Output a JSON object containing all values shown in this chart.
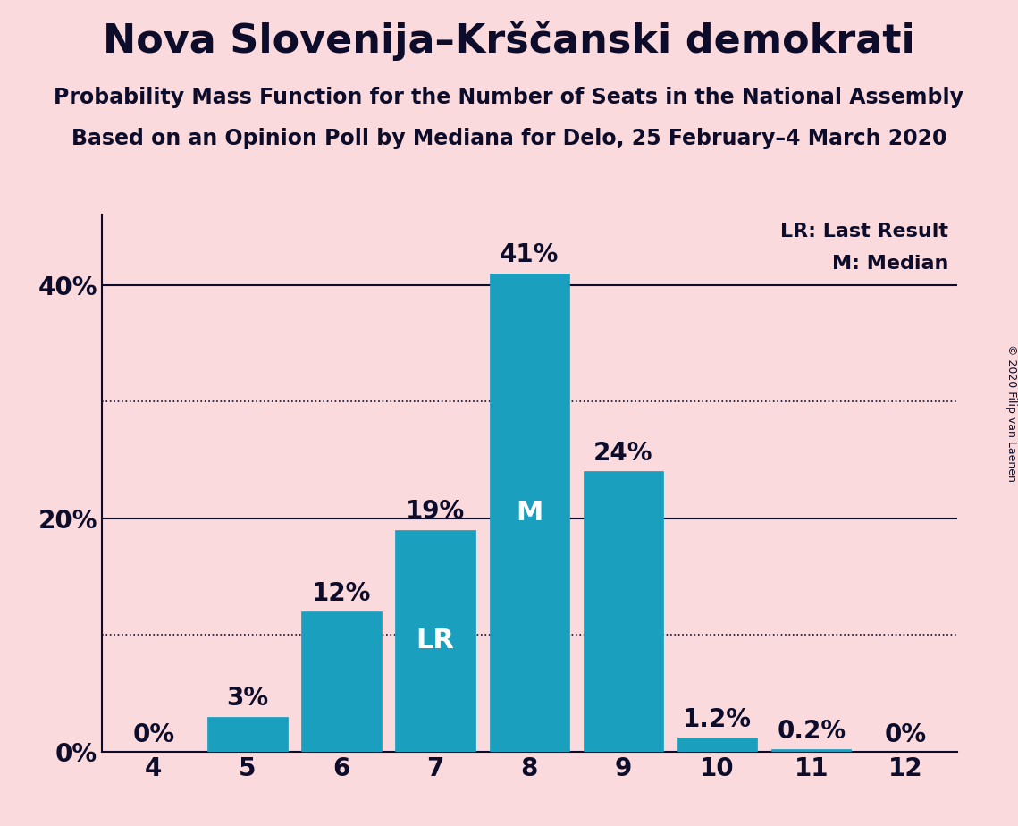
{
  "title": "Nova Slovenija–Krščanski demokrati",
  "subtitle1": "Probability Mass Function for the Number of Seats in the National Assembly",
  "subtitle2": "Based on an Opinion Poll by Mediana for Delo, 25 February–4 March 2020",
  "copyright": "© 2020 Filip van Laenen",
  "categories": [
    4,
    5,
    6,
    7,
    8,
    9,
    10,
    11,
    12
  ],
  "values": [
    0.0,
    3.0,
    12.0,
    19.0,
    41.0,
    24.0,
    1.2,
    0.2,
    0.0
  ],
  "labels": [
    "0%",
    "3%",
    "12%",
    "19%",
    "41%",
    "24%",
    "1.2%",
    "0.2%",
    "0%"
  ],
  "bar_color": "#1a9fbe",
  "background_color": "#fadadd",
  "text_color": "#0d0d2b",
  "bar_label_color_outside": "#0d0d2b",
  "bar_label_color_inside": "#ffffff",
  "lr_bar": 7,
  "median_bar": 8,
  "lr_label": "LR",
  "median_label": "M",
  "legend_lr": "LR: Last Result",
  "legend_m": "M: Median",
  "ytick_labels": [
    "0%",
    "20%",
    "40%"
  ],
  "ytick_values": [
    0,
    20,
    40
  ],
  "ylim": [
    0,
    46
  ],
  "solid_line_y": [
    20,
    40
  ],
  "dotted_line_y": [
    10,
    30
  ],
  "title_fontsize": 32,
  "subtitle_fontsize": 17,
  "tick_fontsize": 20,
  "label_fontsize": 20,
  "legend_fontsize": 16,
  "inside_label_fontsize": 22
}
